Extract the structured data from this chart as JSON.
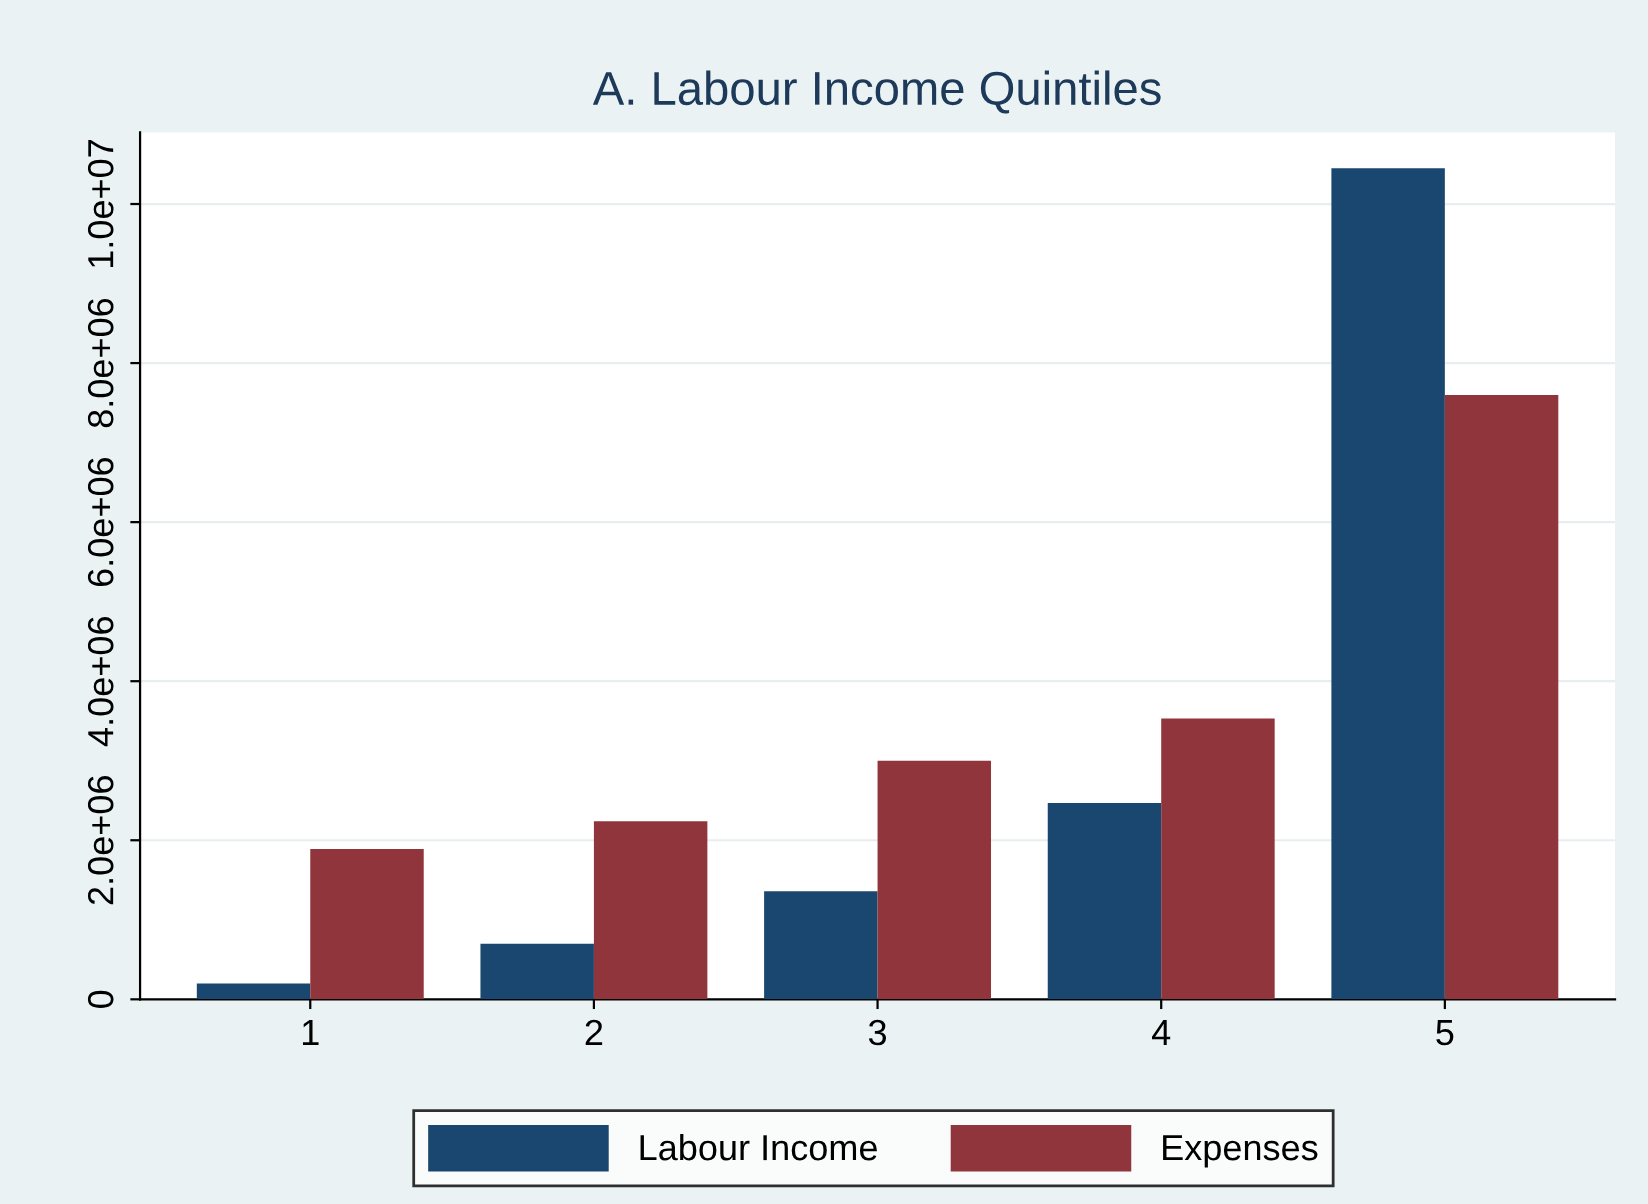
{
  "chart_data": {
    "type": "bar",
    "title": "A. Labour Income Quintiles",
    "categories": [
      "1",
      "2",
      "3",
      "4",
      "5"
    ],
    "series": [
      {
        "name": "Labour Income",
        "color": "#1a476f",
        "values": [
          200000,
          700000,
          1360000,
          2470000,
          10450000
        ]
      },
      {
        "name": "Expenses",
        "color": "#90353b",
        "values": [
          1890000,
          2240000,
          3000000,
          3530000,
          7600000
        ]
      }
    ],
    "ylim": [
      0,
      10900000
    ],
    "yticks": [
      0,
      {
        "value": 2000000,
        "label": "2.0e+06"
      },
      {
        "value": 4000000,
        "label": "4.0e+06"
      },
      {
        "value": 6000000,
        "label": "6.0e+06"
      },
      {
        "value": 8000000,
        "label": "8.0e+06"
      },
      {
        "value": 10000000,
        "label": "1.0e+07"
      }
    ],
    "grid": "y",
    "legend": "bottom"
  }
}
